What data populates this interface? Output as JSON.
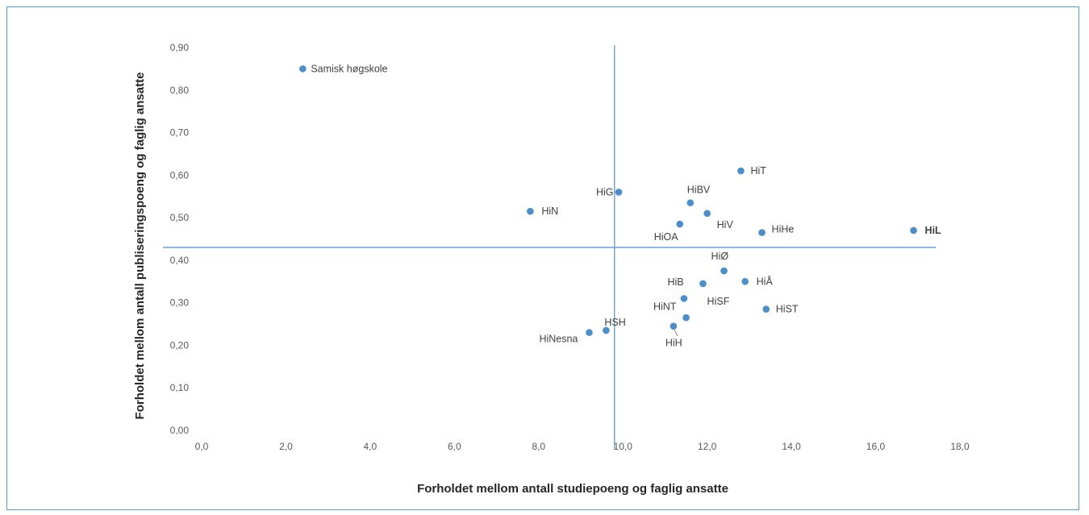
{
  "chart_data": {
    "type": "scatter",
    "title": "",
    "xlabel": "Forholdet mellom antall studiepoeng og faglig ansatte",
    "ylabel": "Forholdet mellom antall publiseringspoeng og faglig ansatte",
    "xlim": [
      0,
      18
    ],
    "ylim": [
      0,
      0.9
    ],
    "x_ticks": [
      "0,0",
      "2,0",
      "4,0",
      "6,0",
      "8,0",
      "10,0",
      "12,0",
      "14,0",
      "16,0",
      "18,0"
    ],
    "y_ticks": [
      "0,00",
      "0,10",
      "0,20",
      "0,30",
      "0,40",
      "0,50",
      "0,60",
      "0,70",
      "0,80",
      "0,90"
    ],
    "grid": false,
    "legend": "none",
    "point_color": "#4a8fcc",
    "reference_lines": {
      "x": 9.8,
      "y": 0.43,
      "color": "#5b9bd5"
    },
    "points": [
      {
        "label": "Samisk høgskole",
        "x": 2.4,
        "y": 0.85
      },
      {
        "label": "HiT",
        "x": 12.8,
        "y": 0.61
      },
      {
        "label": "HiG",
        "x": 9.9,
        "y": 0.56
      },
      {
        "label": "HiBV",
        "x": 11.6,
        "y": 0.535
      },
      {
        "label": "HiN",
        "x": 7.8,
        "y": 0.515
      },
      {
        "label": "HiV",
        "x": 12.0,
        "y": 0.51
      },
      {
        "label": "HiOA",
        "x": 11.35,
        "y": 0.485
      },
      {
        "label": "HiHe",
        "x": 13.3,
        "y": 0.465
      },
      {
        "label": "HiL",
        "x": 16.9,
        "y": 0.47
      },
      {
        "label": "HiØ",
        "x": 12.4,
        "y": 0.375
      },
      {
        "label": "HiB",
        "x": 11.9,
        "y": 0.345
      },
      {
        "label": "HiÅ",
        "x": 12.9,
        "y": 0.35
      },
      {
        "label": "HiNT",
        "x": 11.45,
        "y": 0.31
      },
      {
        "label": "HiSF",
        "x": 11.5,
        "y": 0.265
      },
      {
        "label": "HiST",
        "x": 13.4,
        "y": 0.285
      },
      {
        "label": "HSH",
        "x": 9.6,
        "y": 0.235
      },
      {
        "label": "HiNesna",
        "x": 9.2,
        "y": 0.23
      },
      {
        "label": "HiH",
        "x": 11.2,
        "y": 0.245
      }
    ]
  }
}
